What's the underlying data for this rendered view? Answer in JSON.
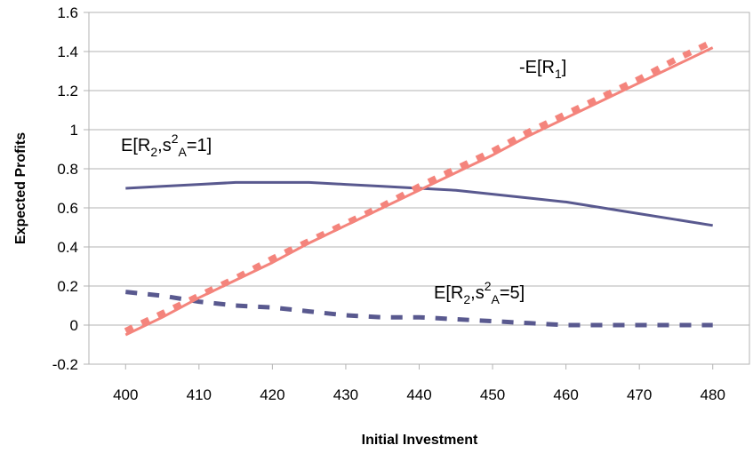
{
  "chart_data": {
    "type": "line",
    "title": "",
    "xlabel": "Initial Investment",
    "ylabel": "Expected Profits",
    "xlim": [
      395,
      485
    ],
    "ylim": [
      -0.2,
      1.6
    ],
    "x_ticks": [
      "400",
      "410",
      "420",
      "430",
      "440",
      "450",
      "460",
      "470",
      "480"
    ],
    "y_ticks": [
      "-0.2",
      "0",
      "0.2",
      "0.4",
      "0.6",
      "0.8",
      "1",
      "1.2",
      "1.4",
      "1.6"
    ],
    "grid": "horizontal",
    "legend": "none",
    "x": [
      400,
      405,
      410,
      415,
      420,
      425,
      430,
      435,
      440,
      445,
      450,
      455,
      460,
      465,
      470,
      475,
      480
    ],
    "series": [
      {
        "id": "neg_e_r1_solid",
        "color": "#f4847c",
        "style": "solid",
        "values": [
          -0.05,
          0.04,
          0.14,
          0.23,
          0.32,
          0.42,
          0.51,
          0.6,
          0.69,
          0.78,
          0.87,
          0.97,
          1.06,
          1.15,
          1.24,
          1.33,
          1.42
        ]
      },
      {
        "id": "neg_e_r1_dashed",
        "color": "#f4847c",
        "style": "dashed",
        "values": [
          -0.03,
          0.06,
          0.15,
          0.24,
          0.34,
          0.43,
          0.52,
          0.61,
          0.71,
          0.8,
          0.89,
          0.99,
          1.08,
          1.17,
          1.26,
          1.36,
          1.45
        ]
      },
      {
        "id": "e_r2_var1",
        "color": "#59598f",
        "style": "solid",
        "values": [
          0.7,
          0.71,
          0.72,
          0.73,
          0.73,
          0.73,
          0.72,
          0.71,
          0.7,
          0.69,
          0.67,
          0.65,
          0.63,
          0.6,
          0.57,
          0.54,
          0.51
        ]
      },
      {
        "id": "e_r2_var5",
        "color": "#59598f",
        "style": "dashed",
        "values": [
          0.17,
          0.15,
          0.12,
          0.1,
          0.09,
          0.07,
          0.05,
          0.04,
          0.04,
          0.03,
          0.02,
          0.01,
          0.0,
          0.0,
          0.0,
          0.0,
          0.0
        ]
      }
    ],
    "annotations": [
      {
        "id": "neg_e_r1",
        "base": "-E[R",
        "sub": "1",
        "tail": "]"
      },
      {
        "id": "e_r2_var1",
        "base": "E[R",
        "sub": "2",
        "mid": ",s",
        "sup": "2",
        "sub2": "A",
        "tail": "=1]"
      },
      {
        "id": "e_r2_var5",
        "base": "E[R",
        "sub": "2",
        "mid": ",s",
        "sup": "2",
        "sub2": "A",
        "tail": "=5]"
      }
    ]
  }
}
